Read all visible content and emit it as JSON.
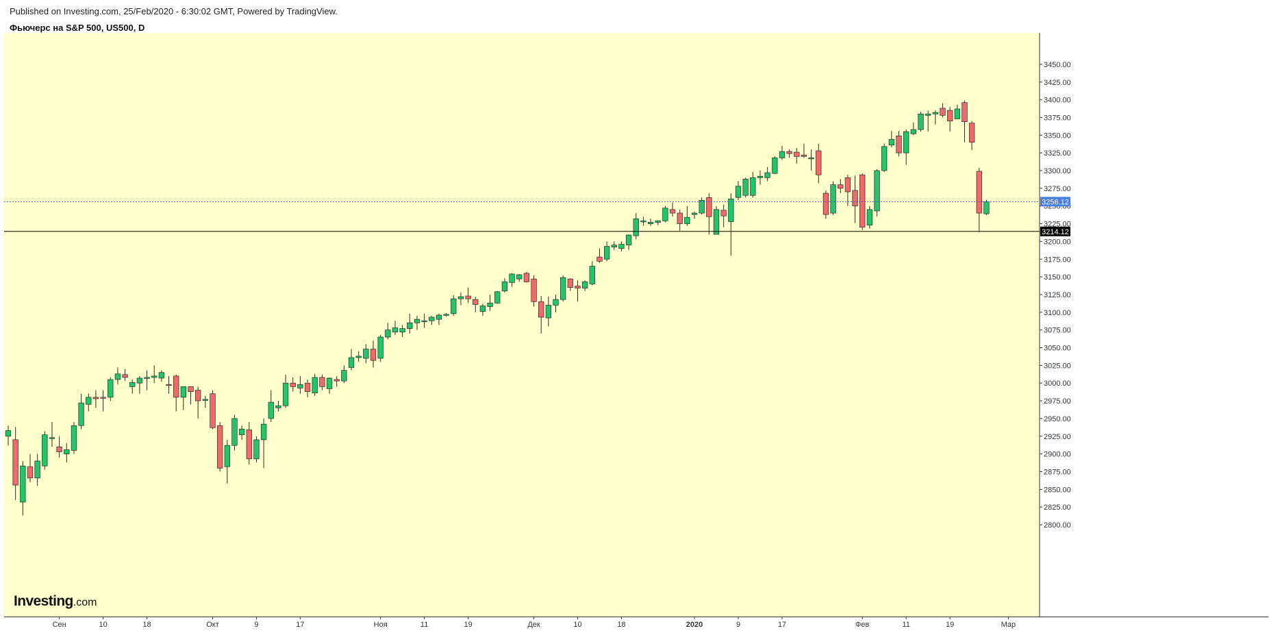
{
  "header": {
    "published": "Published on Investing.com, 25/Feb/2020 - 6:30:02 GMT, Powered by TradingView.",
    "instrument": "Фьючерс на S&P 500, US500, D"
  },
  "logo": {
    "main": "Investing",
    "suffix": ".com"
  },
  "colors": {
    "plot_bg": "#ffffcc",
    "up": "#22c56a",
    "down": "#f06a6a",
    "last_price_badge": "#4a7de0",
    "cursor_badge": "#000000"
  },
  "chart_data": {
    "type": "candlestick",
    "title": "Фьючерс на S&P 500, US500, D",
    "y_axis": {
      "position": "right",
      "min": 2780,
      "max": 3462,
      "tick_step": 25,
      "ticks": [
        2800,
        2825,
        2850,
        2875,
        2900,
        2925,
        2950,
        2975,
        3000,
        3025,
        3050,
        3075,
        3100,
        3125,
        3150,
        3175,
        3200,
        3225,
        3250,
        3275,
        3300,
        3325,
        3350,
        3375,
        3400,
        3425,
        3450
      ]
    },
    "x_axis": {
      "labels": [
        {
          "text": "Сен",
          "bar": 7
        },
        {
          "text": "10",
          "bar": 13
        },
        {
          "text": "18",
          "bar": 19
        },
        {
          "text": "Окт",
          "bar": 28
        },
        {
          "text": "9",
          "bar": 34
        },
        {
          "text": "17",
          "bar": 40
        },
        {
          "text": "Ноя",
          "bar": 51
        },
        {
          "text": "11",
          "bar": 57
        },
        {
          "text": "19",
          "bar": 63
        },
        {
          "text": "Дек",
          "bar": 72
        },
        {
          "text": "10",
          "bar": 78
        },
        {
          "text": "18",
          "bar": 84
        },
        {
          "text": "2020",
          "bar": 94,
          "bold": true
        },
        {
          "text": "9",
          "bar": 100
        },
        {
          "text": "17",
          "bar": 106
        },
        {
          "text": "Фев",
          "bar": 117
        },
        {
          "text": "11",
          "bar": 123
        },
        {
          "text": "19",
          "bar": 129
        },
        {
          "text": "Мар",
          "bar": 137
        }
      ]
    },
    "price_lines": [
      {
        "value": 3256.12,
        "label": "3256.12",
        "style": "dotted",
        "kind": "last"
      },
      {
        "value": 3214.12,
        "label": "3214.12",
        "style": "solid",
        "kind": "cursor"
      }
    ],
    "ohlc": [
      [
        2925,
        2940,
        2912,
        2933
      ],
      [
        2920,
        2938,
        2835,
        2856
      ],
      [
        2832,
        2890,
        2813,
        2883
      ],
      [
        2882,
        2900,
        2860,
        2866
      ],
      [
        2866,
        2900,
        2855,
        2890
      ],
      [
        2883,
        2932,
        2878,
        2927
      ],
      [
        2923,
        2945,
        2910,
        2923
      ],
      [
        2910,
        2925,
        2895,
        2903
      ],
      [
        2900,
        2915,
        2888,
        2906
      ],
      [
        2905,
        2945,
        2900,
        2940
      ],
      [
        2940,
        2985,
        2935,
        2972
      ],
      [
        2970,
        2985,
        2960,
        2980
      ],
      [
        2980,
        2990,
        2965,
        2978
      ],
      [
        2980,
        2990,
        2960,
        2979
      ],
      [
        2980,
        3008,
        2975,
        3005
      ],
      [
        3005,
        3022,
        2998,
        3013
      ],
      [
        3012,
        3020,
        3003,
        3008
      ],
      [
        2995,
        3005,
        2985,
        3001
      ],
      [
        3000,
        3010,
        2985,
        3007
      ],
      [
        3007,
        3018,
        2990,
        3008
      ],
      [
        3008,
        3025,
        3000,
        3010
      ],
      [
        3007,
        3018,
        3002,
        3015
      ],
      [
        2998,
        3010,
        2985,
        2997
      ],
      [
        3010,
        3012,
        2960,
        2980
      ],
      [
        2980,
        2992,
        2962,
        2995
      ],
      [
        2995,
        2995,
        2970,
        2988
      ],
      [
        2990,
        2995,
        2950,
        2975
      ],
      [
        2976,
        2982,
        2965,
        2977
      ],
      [
        2985,
        2990,
        2935,
        2937
      ],
      [
        2940,
        2945,
        2875,
        2880
      ],
      [
        2882,
        2920,
        2858,
        2912
      ],
      [
        2912,
        2955,
        2905,
        2950
      ],
      [
        2927,
        2940,
        2920,
        2935
      ],
      [
        2934,
        2945,
        2885,
        2893
      ],
      [
        2893,
        2925,
        2888,
        2920
      ],
      [
        2920,
        2950,
        2880,
        2942
      ],
      [
        2950,
        2990,
        2945,
        2973
      ],
      [
        2965,
        2975,
        2960,
        2968
      ],
      [
        2968,
        3012,
        2965,
        3000
      ],
      [
        3000,
        3008,
        2988,
        2995
      ],
      [
        2993,
        3010,
        2985,
        2998
      ],
      [
        3000,
        3005,
        2980,
        2988
      ],
      [
        2986,
        3013,
        2982,
        3008
      ],
      [
        3008,
        3012,
        2990,
        2995
      ],
      [
        2992,
        3008,
        2985,
        3007
      ],
      [
        3005,
        3010,
        2995,
        3003
      ],
      [
        3003,
        3025,
        3000,
        3018
      ],
      [
        3022,
        3048,
        3018,
        3036
      ],
      [
        3036,
        3045,
        3030,
        3038
      ],
      [
        3035,
        3055,
        3028,
        3048
      ],
      [
        3048,
        3060,
        3022,
        3032
      ],
      [
        3035,
        3068,
        3030,
        3065
      ],
      [
        3065,
        3085,
        3062,
        3075
      ],
      [
        3072,
        3088,
        3068,
        3078
      ],
      [
        3072,
        3082,
        3065,
        3077
      ],
      [
        3077,
        3098,
        3070,
        3085
      ],
      [
        3085,
        3095,
        3075,
        3090
      ],
      [
        3088,
        3098,
        3078,
        3088
      ],
      [
        3088,
        3095,
        3082,
        3093
      ],
      [
        3090,
        3098,
        3082,
        3096
      ],
      [
        3096,
        3099,
        3094,
        3097
      ],
      [
        3098,
        3124,
        3095,
        3119
      ],
      [
        3119,
        3128,
        3110,
        3122
      ],
      [
        3123,
        3135,
        3113,
        3119
      ],
      [
        3118,
        3122,
        3100,
        3111
      ],
      [
        3101,
        3112,
        3095,
        3109
      ],
      [
        3108,
        3125,
        3102,
        3113
      ],
      [
        3113,
        3130,
        3112,
        3129
      ],
      [
        3130,
        3148,
        3128,
        3143
      ],
      [
        3142,
        3155,
        3136,
        3154
      ],
      [
        3147,
        3154,
        3143,
        3153
      ],
      [
        3155,
        3157,
        3142,
        3143
      ],
      [
        3147,
        3152,
        3108,
        3115
      ],
      [
        3115,
        3123,
        3070,
        3093
      ],
      [
        3092,
        3122,
        3080,
        3110
      ],
      [
        3110,
        3125,
        3100,
        3118
      ],
      [
        3118,
        3152,
        3115,
        3149
      ],
      [
        3147,
        3148,
        3130,
        3135
      ],
      [
        3137,
        3145,
        3115,
        3134
      ],
      [
        3134,
        3145,
        3130,
        3143
      ],
      [
        3140,
        3172,
        3138,
        3165
      ],
      [
        3178,
        3190,
        3170,
        3172
      ],
      [
        3175,
        3200,
        3172,
        3193
      ],
      [
        3192,
        3200,
        3188,
        3195
      ],
      [
        3190,
        3200,
        3186,
        3196
      ],
      [
        3195,
        3210,
        3188,
        3209
      ],
      [
        3208,
        3240,
        3203,
        3232
      ],
      [
        3228,
        3235,
        3222,
        3229
      ],
      [
        3225,
        3232,
        3222,
        3227
      ],
      [
        3227,
        3230,
        3223,
        3229
      ],
      [
        3229,
        3250,
        3227,
        3247
      ],
      [
        3245,
        3255,
        3235,
        3240
      ],
      [
        3240,
        3245,
        3215,
        3225
      ],
      [
        3225,
        3250,
        3222,
        3234
      ],
      [
        3238,
        3242,
        3232,
        3240
      ],
      [
        3240,
        3262,
        3238,
        3258
      ],
      [
        3262,
        3268,
        3210,
        3235
      ],
      [
        3210,
        3250,
        3210,
        3245
      ],
      [
        3244,
        3252,
        3220,
        3236
      ],
      [
        3228,
        3268,
        3180,
        3260
      ],
      [
        3262,
        3285,
        3258,
        3278
      ],
      [
        3265,
        3290,
        3262,
        3288
      ],
      [
        3265,
        3298,
        3262,
        3290
      ],
      [
        3290,
        3300,
        3280,
        3292
      ],
      [
        3290,
        3305,
        3285,
        3297
      ],
      [
        3296,
        3320,
        3295,
        3318
      ],
      [
        3318,
        3335,
        3315,
        3327
      ],
      [
        3327,
        3330,
        3318,
        3324
      ],
      [
        3326,
        3332,
        3310,
        3320
      ],
      [
        3322,
        3338,
        3318,
        3320
      ],
      [
        3317,
        3330,
        3300,
        3318
      ],
      [
        3328,
        3338,
        3282,
        3294
      ],
      [
        3268,
        3272,
        3232,
        3238
      ],
      [
        3240,
        3285,
        3237,
        3280
      ],
      [
        3280,
        3288,
        3268,
        3275
      ],
      [
        3290,
        3294,
        3250,
        3270
      ],
      [
        3272,
        3293,
        3226,
        3250
      ],
      [
        3294,
        3296,
        3216,
        3220
      ],
      [
        3223,
        3250,
        3218,
        3245
      ],
      [
        3243,
        3302,
        3235,
        3300
      ],
      [
        3300,
        3338,
        3298,
        3334
      ],
      [
        3336,
        3356,
        3333,
        3344
      ],
      [
        3349,
        3356,
        3320,
        3325
      ],
      [
        3325,
        3358,
        3308,
        3355
      ],
      [
        3352,
        3368,
        3350,
        3358
      ],
      [
        3358,
        3383,
        3355,
        3380
      ],
      [
        3378,
        3385,
        3355,
        3380
      ],
      [
        3380,
        3385,
        3365,
        3382
      ],
      [
        3388,
        3395,
        3375,
        3378
      ],
      [
        3385,
        3390,
        3355,
        3370
      ],
      [
        3373,
        3393,
        3373,
        3387
      ],
      [
        3396,
        3399,
        3340,
        3369
      ],
      [
        3367,
        3370,
        3329,
        3340
      ],
      [
        3299,
        3304,
        3213,
        3240
      ],
      [
        3239,
        3259,
        3237,
        3256
      ]
    ]
  }
}
